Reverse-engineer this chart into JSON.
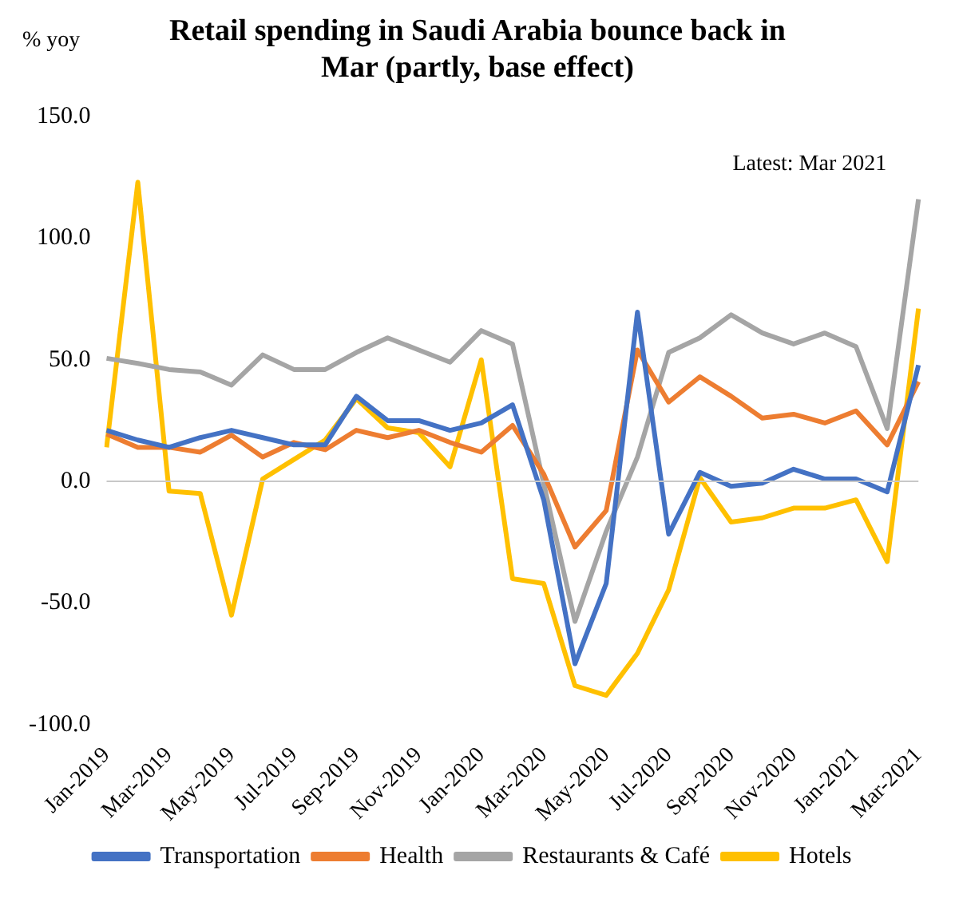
{
  "chart_data": {
    "type": "line",
    "title": "Retail spending in Saudi Arabia bounce back in Mar (partly, base effect)",
    "ylabel": "% yoy",
    "annotations": [
      "Latest: Mar 2021"
    ],
    "categories": [
      "Jan-2019",
      null,
      "Mar-2019",
      null,
      "May-2019",
      null,
      "Jul-2019",
      null,
      "Sep-2019",
      null,
      "Nov-2019",
      null,
      "Jan-2020",
      null,
      "Mar-2020",
      null,
      "May-2020",
      null,
      "Jul-2020",
      null,
      "Sep-2020",
      null,
      "Nov-2020",
      null,
      "Jan-2021",
      null,
      "Mar-2021"
    ],
    "series": [
      {
        "name": "Transportation",
        "color": "#4472c4",
        "values": [
          21,
          17,
          14,
          18,
          21,
          18,
          15,
          15,
          35,
          25,
          25,
          21,
          24,
          31.5,
          -7.6,
          -75,
          -42,
          69.6,
          -21.7,
          3.7,
          -2,
          -0.7,
          5,
          1,
          1,
          -4.3,
          47.8
        ]
      },
      {
        "name": "Health",
        "color": "#ed7d31",
        "values": [
          19.5,
          14,
          14,
          12,
          19,
          10,
          16,
          13,
          21,
          18,
          21,
          16,
          12,
          23,
          3,
          -27,
          -12,
          54,
          32.6,
          43,
          35,
          26,
          27.6,
          24,
          29,
          15,
          41
        ]
      },
      {
        "name": "Restaurants & Café",
        "color": "#a5a5a5",
        "values": [
          50.6,
          48.5,
          46,
          45,
          39.6,
          52,
          46,
          46,
          53,
          59,
          54,
          49,
          62,
          56.5,
          -1,
          -57.6,
          -20.6,
          10,
          53,
          59,
          68.5,
          61,
          56.5,
          61,
          55.4,
          21.7,
          116
        ]
      },
      {
        "name": "Hotels",
        "color": "#ffc000",
        "values": [
          14,
          123,
          -4,
          -5,
          -55,
          1,
          9,
          17,
          34,
          22,
          20,
          6,
          50,
          -40,
          -42,
          -84,
          -88,
          -70.7,
          -44.6,
          1.5,
          -16.7,
          -15,
          -11,
          -11,
          -7.6,
          -33,
          71
        ]
      }
    ],
    "ylim": [
      -100,
      150
    ],
    "yticks": [
      {
        "value": -100,
        "label": "-100.0"
      },
      {
        "value": -50,
        "label": "-50.0"
      },
      {
        "value": 0,
        "label": "0.0"
      },
      {
        "value": 50,
        "label": "50.0"
      },
      {
        "value": 100,
        "label": "100.0"
      },
      {
        "value": 150,
        "label": "150.0"
      }
    ],
    "ref_lines": [
      {
        "axis": "y",
        "value": 0,
        "color": "#c8c8c8"
      }
    ],
    "grid": false,
    "legend": "bottom",
    "marker": "none",
    "line_style": "solid"
  }
}
